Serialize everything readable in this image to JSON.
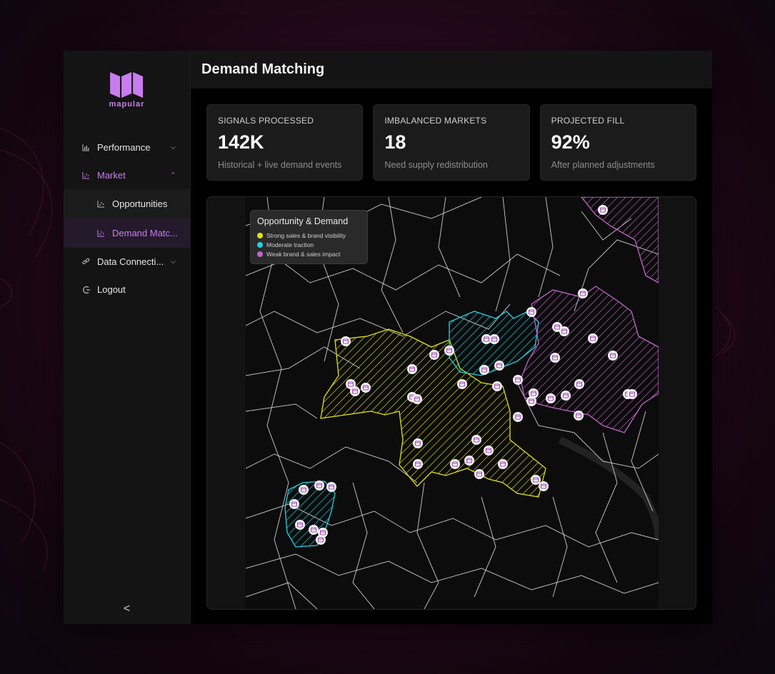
{
  "app": {
    "logo_text": "mapular",
    "page_title": "Demand Matching"
  },
  "sidebar": {
    "items": [
      {
        "label": "Performance",
        "icon": "bar-chart-icon",
        "chevron": "down"
      },
      {
        "label": "Market",
        "icon": "scatter-chart-icon",
        "chevron": "up",
        "active": true
      },
      {
        "label": "Opportunities",
        "icon": "scatter-chart-icon",
        "sub": true
      },
      {
        "label": "Demand Matc...",
        "icon": "scatter-chart-icon",
        "sub": true,
        "selected": true
      },
      {
        "label": "Data Connecti...",
        "icon": "link-icon",
        "chevron": "down"
      },
      {
        "label": "Logout",
        "icon": "logout-icon"
      }
    ],
    "collapse_glyph": "<"
  },
  "kpis": [
    {
      "label": "SIGNALS PROCESSED",
      "value": "142K",
      "caption": "Historical + live demand events"
    },
    {
      "label": "IMBALANCED MARKETS",
      "value": "18",
      "caption": "Need supply redistribution"
    },
    {
      "label": "PROJECTED FILL",
      "value": "92%",
      "caption": "After planned adjustments"
    }
  ],
  "map": {
    "legend": {
      "title": "Opportunity & Demand",
      "items": [
        {
          "label": "Strong sales & brand visibility",
          "color": "#e1e20f"
        },
        {
          "label": "Moderate traction",
          "color": "#22d3e6"
        },
        {
          "label": "Weak brand & sales impact",
          "color": "#c264c8"
        }
      ]
    }
  },
  "colors": {
    "accent": "#c77dee",
    "strong": "#e1e20f",
    "moderate": "#22d3e6",
    "weak": "#c264c8"
  }
}
